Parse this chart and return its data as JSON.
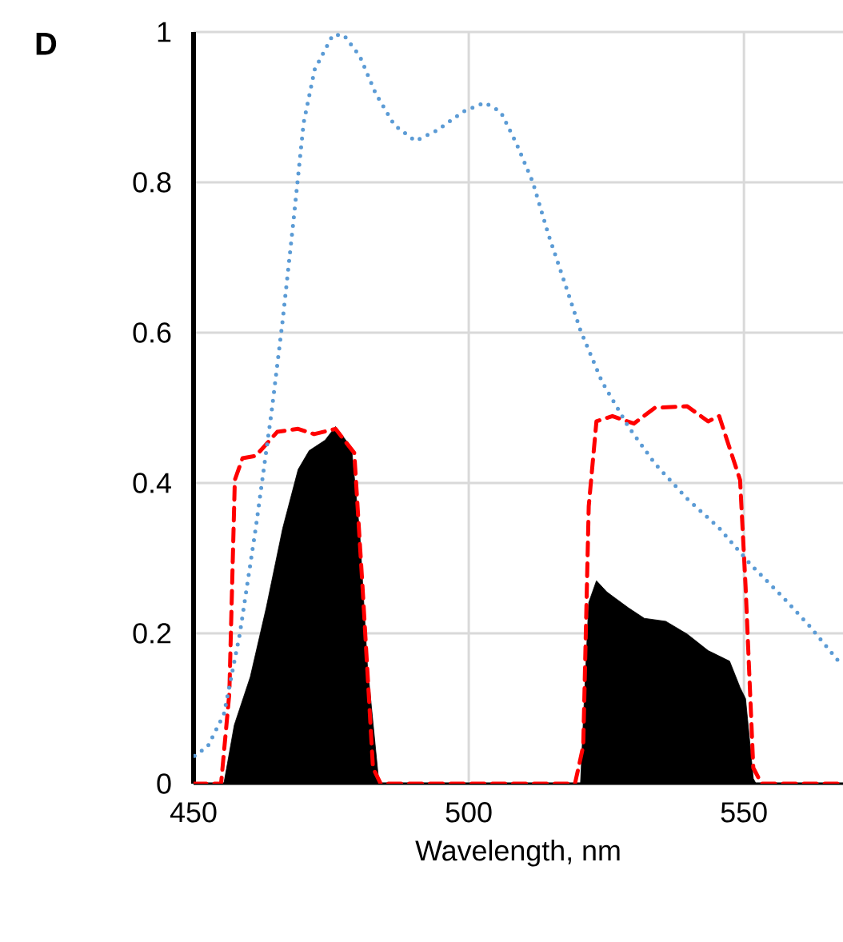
{
  "chart_data": {
    "type": "line",
    "xlabel": "Wavelength, nm",
    "annotations": [
      "D"
    ],
    "xlim": [
      450,
      568
    ],
    "ylim": [
      0,
      1
    ],
    "xticks": [
      450,
      500,
      550
    ],
    "yticks": [
      0,
      0.2,
      0.4,
      0.6,
      0.8,
      1
    ],
    "grid": true,
    "marker": "none",
    "series": [
      {
        "type": "area",
        "color": "#000000",
        "x": [
          455.5,
          457.4,
          460.3,
          463.2,
          466.2,
          469,
          471,
          473.9,
          475.8,
          478.7,
          480.2,
          481.6,
          483.6,
          484,
          520.3,
          521.8,
          523.2,
          525.1,
          529,
          531.9,
          535.8,
          539.7,
          543.5,
          547.4,
          549.3,
          550.3,
          551.7,
          552.2
        ],
        "values": [
          0,
          0.078,
          0.142,
          0.234,
          0.34,
          0.418,
          0.443,
          0.457,
          0.475,
          0.447,
          0.333,
          0.156,
          0.007,
          0,
          0,
          0.241,
          0.27,
          0.255,
          0.234,
          0.22,
          0.216,
          0.199,
          0.177,
          0.163,
          0.128,
          0.113,
          0.007,
          0
        ]
      },
      {
        "line_style": "dashed",
        "color": "#ff0000",
        "x": [
          450,
          455,
          456.5,
          457.5,
          458.9,
          461.3,
          465.2,
          469,
          471.9,
          475.8,
          479.2,
          480.7,
          482.6,
          484,
          519.3,
          520.8,
          521.8,
          523.2,
          526.1,
          530,
          533.8,
          539.7,
          543.5,
          545.5,
          549.3,
          550.3,
          551.7,
          553.2,
          567.7
        ],
        "values": [
          0,
          0,
          0.12,
          0.404,
          0.433,
          0.436,
          0.468,
          0.472,
          0.465,
          0.472,
          0.44,
          0.262,
          0.021,
          0,
          0,
          0.05,
          0.369,
          0.482,
          0.489,
          0.479,
          0.5,
          0.502,
          0.482,
          0.489,
          0.404,
          0.262,
          0.021,
          0,
          0
        ]
      },
      {
        "line_style": "dotted",
        "color": "#5b9bd5",
        "x": [
          450.2,
          452.6,
          455.5,
          458.4,
          461.3,
          464.2,
          466.2,
          468.1,
          470,
          472,
          475.3,
          477.3,
          480.2,
          483.1,
          486.5,
          490.3,
          494.2,
          499,
          502.9,
          505.8,
          508.7,
          511.6,
          514.5,
          517.4,
          520.3,
          524.2,
          529,
          533.8,
          539.7,
          545.5,
          551.3,
          557.1,
          562,
          567.2
        ],
        "values": [
          0.037,
          0.05,
          0.092,
          0.199,
          0.34,
          0.496,
          0.617,
          0.745,
          0.879,
          0.95,
          0.996,
          0.996,
          0.968,
          0.918,
          0.876,
          0.855,
          0.869,
          0.894,
          0.906,
          0.894,
          0.851,
          0.801,
          0.73,
          0.667,
          0.603,
          0.535,
          0.475,
          0.426,
          0.379,
          0.34,
          0.291,
          0.248,
          0.209,
          0.163
        ]
      }
    ]
  }
}
